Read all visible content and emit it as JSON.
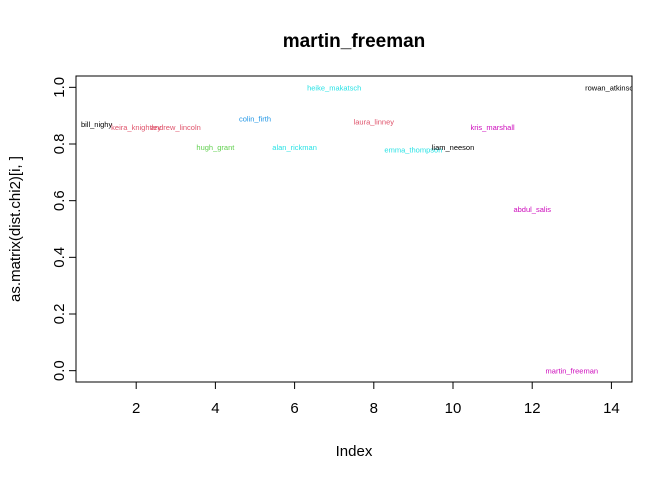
{
  "chart_data": {
    "type": "scatter",
    "title": "martin_freeman",
    "xlabel": "Index",
    "ylabel": "as.matrix(dist.chi2)[i, ]",
    "xlim": [
      0.48,
      14.52
    ],
    "ylim": [
      -0.04,
      1.04
    ],
    "xticks": [
      2,
      4,
      6,
      8,
      10,
      12,
      14
    ],
    "yticks": [
      0.0,
      0.2,
      0.4,
      0.6,
      0.8,
      1.0
    ],
    "xtick_labels": [
      "2",
      "4",
      "6",
      "8",
      "10",
      "12",
      "14"
    ],
    "ytick_labels": [
      "0.0",
      "0.2",
      "0.4",
      "0.6",
      "0.8",
      "1.0"
    ],
    "grid": false,
    "marker": "text-labels",
    "points": [
      {
        "x": 1,
        "y": 0.87,
        "label": "bill_nighy",
        "color": "#000000"
      },
      {
        "x": 2,
        "y": 0.86,
        "label": "keira_knightley",
        "color": "#DF536B"
      },
      {
        "x": 3,
        "y": 0.86,
        "label": "andrew_lincoln",
        "color": "#DF536B"
      },
      {
        "x": 4,
        "y": 0.79,
        "label": "hugh_grant",
        "color": "#61D04F"
      },
      {
        "x": 5,
        "y": 0.89,
        "label": "colin_firth",
        "color": "#2297E6"
      },
      {
        "x": 6,
        "y": 0.79,
        "label": "alan_rickman",
        "color": "#28E2E5"
      },
      {
        "x": 7,
        "y": 1.0,
        "label": "heike_makatsch",
        "color": "#28E2E5"
      },
      {
        "x": 8,
        "y": 0.88,
        "label": "laura_linney",
        "color": "#DF536B"
      },
      {
        "x": 9,
        "y": 0.78,
        "label": "emma_thompson",
        "color": "#28E2E5"
      },
      {
        "x": 10,
        "y": 0.79,
        "label": "liam_neeson",
        "color": "#000000"
      },
      {
        "x": 11,
        "y": 0.86,
        "label": "kris_marshall",
        "color": "#CD0BBC"
      },
      {
        "x": 12,
        "y": 0.57,
        "label": "abdul_salis",
        "color": "#CD0BBC"
      },
      {
        "x": 13,
        "y": 0.0,
        "label": "martin_freeman",
        "color": "#CD0BBC"
      },
      {
        "x": 14,
        "y": 1.0,
        "label": "rowan_atkinson",
        "color": "#000000"
      }
    ]
  }
}
